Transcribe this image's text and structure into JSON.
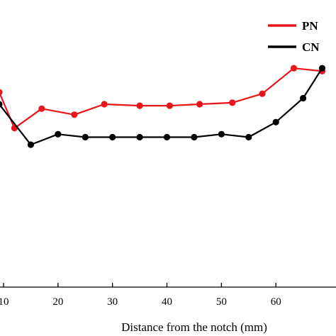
{
  "chart_data": {
    "type": "line",
    "title": "",
    "xlabel": "Distance from the notch (mm)",
    "ylabel": "",
    "xlim": [
      10,
      70
    ],
    "ylim": [
      0,
      100
    ],
    "xticks": [
      10,
      20,
      30,
      40,
      50,
      60
    ],
    "xtick_labels": [
      "10",
      "20",
      "30",
      "40",
      "50",
      "60"
    ],
    "grid": false,
    "legend_position": "top-right",
    "series": [
      {
        "name": "PN",
        "color": "#e8161c",
        "x": [
          9.2,
          12,
          17,
          23,
          28.5,
          35,
          40.5,
          46,
          52,
          57.5,
          63.3,
          68.5
        ],
        "y": [
          65,
          53,
          59.5,
          57.5,
          61,
          60.5,
          60.5,
          61,
          61.5,
          64.5,
          73,
          72
        ]
      },
      {
        "name": "CN",
        "color": "#000000",
        "x": [
          9.2,
          15,
          20,
          25,
          30,
          35,
          40,
          45,
          50,
          55,
          60,
          65,
          68.5
        ],
        "y": [
          61,
          47.5,
          51,
          50,
          50,
          50,
          50,
          50,
          51,
          50,
          55,
          63,
          73
        ]
      }
    ]
  }
}
